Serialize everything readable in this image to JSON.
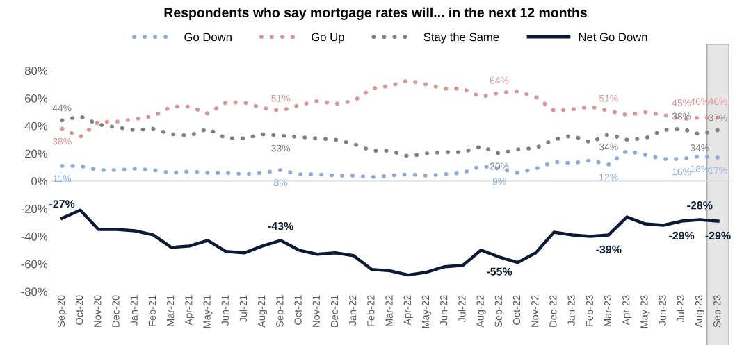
{
  "chart_data": {
    "type": "line",
    "title": "Respondents who say mortgage rates will... in the next 12 months",
    "categories": [
      "Sep-20",
      "Oct-20",
      "Nov-20",
      "Dec-20",
      "Jan-21",
      "Feb-21",
      "Mar-21",
      "Apr-21",
      "May-21",
      "Jun-21",
      "Jul-21",
      "Aug-21",
      "Sep-21",
      "Oct-21",
      "Nov-21",
      "Dec-21",
      "Jan-22",
      "Feb-22",
      "Mar-22",
      "Apr-22",
      "May-22",
      "Jun-22",
      "Jul-22",
      "Aug-22",
      "Sep-22",
      "Oct-22",
      "Nov-22",
      "Dec-22",
      "Jan-23",
      "Feb-23",
      "Mar-23",
      "Apr-23",
      "May-23",
      "Jun-23",
      "Jul-23",
      "Aug-23",
      "Sep-23"
    ],
    "series": [
      {
        "name": "Go Down",
        "color": "#8eaadb",
        "line_style": "dotted",
        "values": [
          11,
          11,
          8,
          8,
          9,
          8,
          6,
          7,
          6,
          6,
          5,
          6,
          8,
          5,
          5,
          4,
          4,
          3,
          4,
          5,
          4,
          5,
          6,
          11,
          9,
          6,
          9,
          14,
          13,
          15,
          12,
          22,
          19,
          16,
          16,
          18,
          17
        ],
        "value_labels": [
          "11%",
          null,
          null,
          null,
          null,
          null,
          null,
          null,
          null,
          null,
          null,
          null,
          "8%",
          null,
          null,
          null,
          null,
          null,
          null,
          null,
          null,
          null,
          null,
          null,
          "9%",
          null,
          null,
          null,
          null,
          null,
          "12%",
          null,
          null,
          null,
          "16%",
          "18%",
          "17%"
        ]
      },
      {
        "name": "Go Up",
        "color": "#d99594",
        "line_style": "dotted",
        "values": [
          38,
          32,
          43,
          43,
          45,
          47,
          54,
          54,
          49,
          57,
          57,
          53,
          51,
          55,
          58,
          56,
          58,
          67,
          69,
          73,
          70,
          67,
          67,
          61,
          64,
          65,
          61,
          51,
          52,
          54,
          51,
          48,
          50,
          48,
          45,
          46,
          46
        ],
        "value_labels": [
          "38%",
          null,
          null,
          null,
          null,
          null,
          null,
          null,
          null,
          null,
          null,
          null,
          "51%",
          null,
          null,
          null,
          null,
          null,
          null,
          null,
          null,
          null,
          null,
          null,
          "64%",
          null,
          null,
          null,
          null,
          null,
          "51%",
          null,
          null,
          null,
          "45%",
          "46%",
          "46%"
        ]
      },
      {
        "name": "Stay the Same",
        "color": "#7f7f7f",
        "line_style": "dotted",
        "values": [
          44,
          47,
          41,
          39,
          37,
          38,
          34,
          33,
          38,
          31,
          31,
          34,
          33,
          32,
          31,
          30,
          27,
          22,
          22,
          18,
          20,
          21,
          21,
          25,
          20,
          23,
          24,
          30,
          33,
          28,
          34,
          30,
          31,
          37,
          38,
          34,
          37
        ],
        "value_labels": [
          "44%",
          null,
          null,
          null,
          null,
          null,
          null,
          null,
          null,
          null,
          null,
          null,
          "33%",
          null,
          null,
          null,
          null,
          null,
          null,
          null,
          null,
          null,
          null,
          null,
          "20%",
          null,
          null,
          null,
          null,
          null,
          "34%",
          null,
          null,
          null,
          "38%",
          "34%",
          "37%"
        ]
      },
      {
        "name": "Net Go Down",
        "color": "#0c1a33",
        "line_style": "solid",
        "values": [
          -27,
          -21,
          -35,
          -35,
          -36,
          -39,
          -48,
          -47,
          -43,
          -51,
          -52,
          -47,
          -43,
          -50,
          -53,
          -52,
          -54,
          -64,
          -65,
          -68,
          -66,
          -62,
          -61,
          -50,
          -55,
          -59,
          -52,
          -37,
          -39,
          -40,
          -39,
          -26,
          -31,
          -32,
          -29,
          -28,
          -29
        ],
        "value_labels": [
          "-27%",
          null,
          null,
          null,
          null,
          null,
          null,
          null,
          null,
          null,
          null,
          null,
          "-43%",
          null,
          null,
          null,
          null,
          null,
          null,
          null,
          null,
          null,
          null,
          null,
          "-55%",
          null,
          null,
          null,
          null,
          null,
          "-39%",
          null,
          null,
          null,
          "-29%",
          "-28%",
          "-29%"
        ]
      }
    ],
    "ylim": [
      -80,
      80
    ],
    "yticks": [
      {
        "value": -80,
        "label": "-80%"
      },
      {
        "value": -60,
        "label": "-60%"
      },
      {
        "value": -40,
        "label": "-40%"
      },
      {
        "value": -20,
        "label": "-20%"
      },
      {
        "value": 0,
        "label": "0%"
      },
      {
        "value": 20,
        "label": "20%"
      },
      {
        "value": 40,
        "label": "40%"
      },
      {
        "value": 60,
        "label": "60%"
      },
      {
        "value": 80,
        "label": "80%"
      }
    ],
    "ref_lines": [
      {
        "axis": "y",
        "value": 0,
        "color": "#d9d9d9"
      }
    ],
    "bands": [
      {
        "axis": "x",
        "from": "Sep-23",
        "to": "Sep-23",
        "color": "#e6e6e6"
      }
    ],
    "grid": false,
    "legend": "top",
    "marker": "none"
  }
}
